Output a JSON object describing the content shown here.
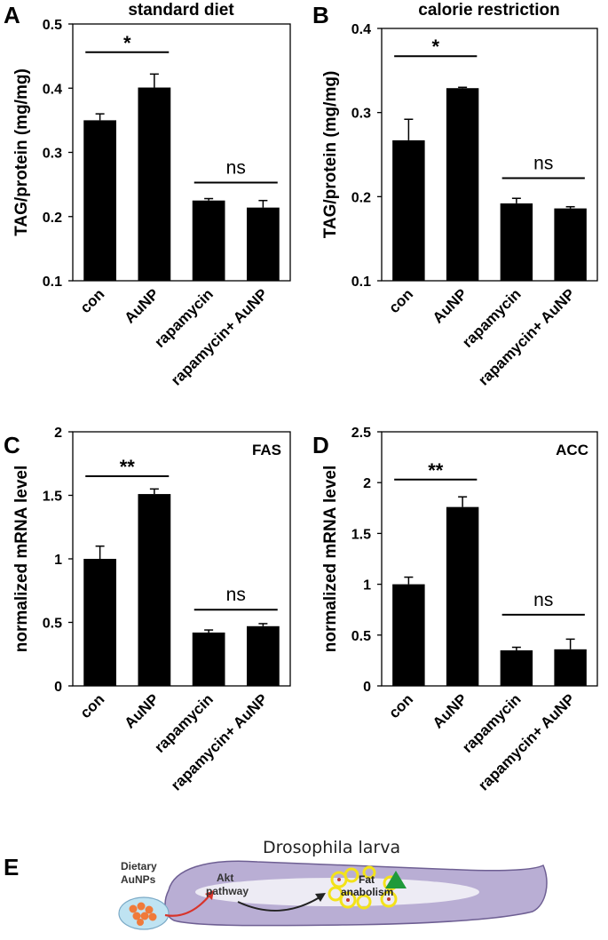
{
  "chart_data": [
    {
      "panel": "A",
      "type": "bar",
      "title": "standard diet",
      "ylabel": "TAG/protein (mg/mg)",
      "xlabel": "",
      "categories": [
        "con",
        "AuNP",
        "rapamycin",
        "rapamycin+ AuNP"
      ],
      "values": [
        0.35,
        0.401,
        0.225,
        0.214
      ],
      "errors": [
        0.01,
        0.021,
        0.003,
        0.011
      ],
      "ylim": [
        0.1,
        0.5
      ],
      "yticks": [
        0.1,
        0.2,
        0.3,
        0.4,
        0.5
      ],
      "ytick_labels": [
        "0.1",
        "0.2",
        "0.3",
        "0.4",
        "0.5"
      ],
      "gene_label": "",
      "significance": [
        {
          "groups": [
            0,
            1
          ],
          "label": "*",
          "y": 0.456
        },
        {
          "groups": [
            2,
            3
          ],
          "label": "ns",
          "y": 0.253
        }
      ]
    },
    {
      "panel": "B",
      "type": "bar",
      "title": "calorie restriction",
      "ylabel": "TAG/protein (mg/mg)",
      "xlabel": "",
      "categories": [
        "con",
        "AuNP",
        "rapamycin",
        "rapamycin+ AuNP"
      ],
      "values": [
        0.267,
        0.329,
        0.192,
        0.186
      ],
      "errors": [
        0.025,
        0.001,
        0.006,
        0.002
      ],
      "ylim": [
        0.1,
        0.4
      ],
      "yticks": [
        0.1,
        0.2,
        0.3,
        0.4
      ],
      "ytick_labels": [
        "0.1",
        "0.2",
        "0.3",
        "0.4"
      ],
      "gene_label": "",
      "significance": [
        {
          "groups": [
            0,
            1
          ],
          "label": "*",
          "y": 0.367
        },
        {
          "groups": [
            2,
            3
          ],
          "label": "ns",
          "y": 0.222
        }
      ]
    },
    {
      "panel": "C",
      "type": "bar",
      "title": "",
      "ylabel": "normalized mRNA level",
      "xlabel": "",
      "categories": [
        "con",
        "AuNP",
        "rapamycin",
        "rapamycin+ AuNP"
      ],
      "values": [
        1.0,
        1.51,
        0.42,
        0.47
      ],
      "errors": [
        0.1,
        0.04,
        0.02,
        0.02
      ],
      "ylim": [
        0,
        2
      ],
      "yticks": [
        0,
        0.5,
        1,
        1.5,
        2
      ],
      "ytick_labels": [
        "0",
        "0.5",
        "1",
        "1.5",
        "2"
      ],
      "gene_label": "FAS",
      "significance": [
        {
          "groups": [
            0,
            1
          ],
          "label": "**",
          "y": 1.65
        },
        {
          "groups": [
            2,
            3
          ],
          "label": "ns",
          "y": 0.6
        }
      ]
    },
    {
      "panel": "D",
      "type": "bar",
      "title": "",
      "ylabel": "normalized mRNA level",
      "xlabel": "",
      "categories": [
        "con",
        "AuNP",
        "rapamycin",
        "rapamycin+ AuNP"
      ],
      "values": [
        1.0,
        1.76,
        0.35,
        0.36
      ],
      "errors": [
        0.07,
        0.1,
        0.03,
        0.1
      ],
      "ylim": [
        0,
        2.5
      ],
      "yticks": [
        0,
        0.5,
        1,
        1.5,
        2,
        2.5
      ],
      "ytick_labels": [
        "0",
        "0.5",
        "1",
        "1.5",
        "2",
        "2.5"
      ],
      "gene_label": "ACC",
      "significance": [
        {
          "groups": [
            0,
            1
          ],
          "label": "**",
          "y": 2.03
        },
        {
          "groups": [
            2,
            3
          ],
          "label": "ns",
          "y": 0.7
        }
      ]
    }
  ],
  "diagram": {
    "panel": "E",
    "title": "Drosophila larva",
    "dietary_label_line1": "Dietary",
    "dietary_label_line2": "AuNPs",
    "akt_label_line1": "Akt",
    "akt_label_line2": "pathway",
    "fat_label_line1": "Fat",
    "fat_label_line2": "anabolism",
    "body_color": "#b9aed4",
    "arrow_up_color": "#1f9a3a",
    "particle_color": "#f07a3a",
    "fat_ring_color": "#f3e21a"
  }
}
